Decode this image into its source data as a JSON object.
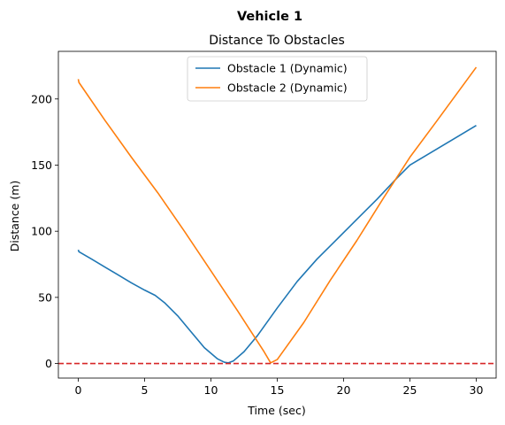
{
  "chart_data": {
    "type": "line",
    "suptitle": "Vehicle 1",
    "title": "Distance To Obstacles",
    "xlabel": "Time (sec)",
    "ylabel": "Distance (m)",
    "xlim": [
      -1.5,
      31.5
    ],
    "ylim": [
      -11,
      236
    ],
    "xticks": [
      0,
      5,
      10,
      15,
      20,
      25,
      30
    ],
    "yticks": [
      0,
      50,
      100,
      150,
      200
    ],
    "grid": false,
    "legend_position": "top-center",
    "reference_line": {
      "y": 0,
      "color": "#d62728",
      "style": "dashed"
    },
    "series": [
      {
        "name": "Obstacle 1 (Dynamic)",
        "color": "#1f77b4",
        "x": [
          0,
          0.05,
          1,
          2,
          3,
          4,
          5,
          5.8,
          6.5,
          7.5,
          8.5,
          9.5,
          10.5,
          11,
          11.3,
          11.7,
          12.5,
          13.5,
          15,
          16.5,
          18,
          19.5,
          21,
          22.5,
          24,
          25,
          27,
          30
        ],
        "y": [
          86,
          84.5,
          79,
          73,
          67,
          61,
          55.5,
          51.5,
          46,
          36,
          24,
          12,
          3.5,
          1,
          0.5,
          2,
          9,
          21,
          42,
          62,
          79,
          94,
          109,
          124,
          140,
          150,
          162,
          180
        ]
      },
      {
        "name": "Obstacle 2 (Dynamic)",
        "color": "#ff7f0e",
        "x": [
          0,
          0.05,
          2,
          4,
          6,
          8,
          10,
          12,
          14,
          14.5,
          15,
          17,
          19,
          21,
          23,
          25,
          27,
          30
        ],
        "y": [
          215,
          212.5,
          184,
          156,
          129,
          100,
          70,
          40,
          9,
          0.5,
          3,
          31,
          63,
          93,
          125,
          156,
          183,
          224
        ]
      }
    ]
  }
}
